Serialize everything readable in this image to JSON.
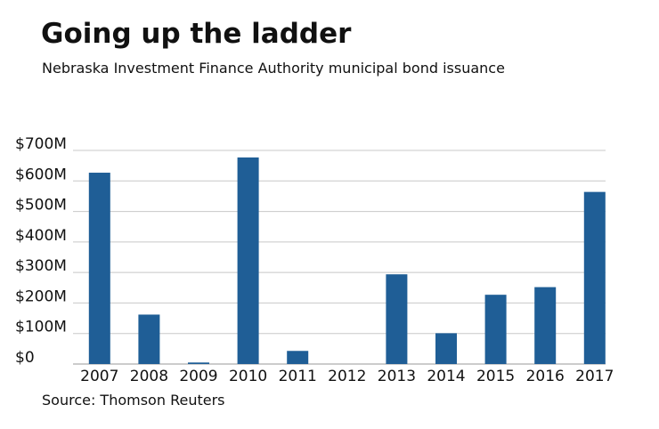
{
  "chart_data": {
    "type": "bar",
    "title": "Going up the ladder",
    "subtitle": "Nebraska Investment Finance Authority municipal bond issuance",
    "source": "Source: Thomson Reuters",
    "categories": [
      "2007",
      "2008",
      "2009",
      "2010",
      "2011",
      "2012",
      "2013",
      "2014",
      "2015",
      "2016",
      "2017"
    ],
    "values": [
      627,
      162,
      5,
      677,
      43,
      0,
      294,
      101,
      227,
      252,
      564
    ],
    "units": "$M",
    "ylim": [
      0,
      700
    ],
    "y_ticks": [
      0,
      100,
      200,
      300,
      400,
      500,
      600,
      700
    ],
    "y_tick_labels": [
      "$0",
      "$100M",
      "$200M",
      "$300M",
      "$400M",
      "$500M",
      "$600M",
      "$700M"
    ],
    "xlabel": "",
    "ylabel": "",
    "grid": true,
    "legend": "none",
    "bar_color": "#1f5e96",
    "grid_color": "#c8c8c8"
  }
}
